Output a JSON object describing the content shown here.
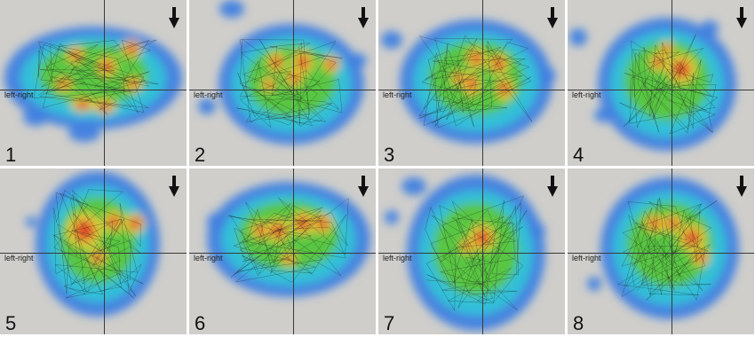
{
  "figure": {
    "axis_label": "left-right",
    "arrow_icon": "down-arrow-icon",
    "colors": {
      "background": "#cfcecb",
      "cold": "#3f7fe0",
      "cool": "#2fc4d8",
      "warm": "#5cc63a",
      "hot": "#f0d23a",
      "max": "#e0402a"
    },
    "panels": [
      {
        "number": "1"
      },
      {
        "number": "2"
      },
      {
        "number": "3"
      },
      {
        "number": "4"
      },
      {
        "number": "5"
      },
      {
        "number": "6"
      },
      {
        "number": "7"
      },
      {
        "number": "8"
      }
    ]
  }
}
